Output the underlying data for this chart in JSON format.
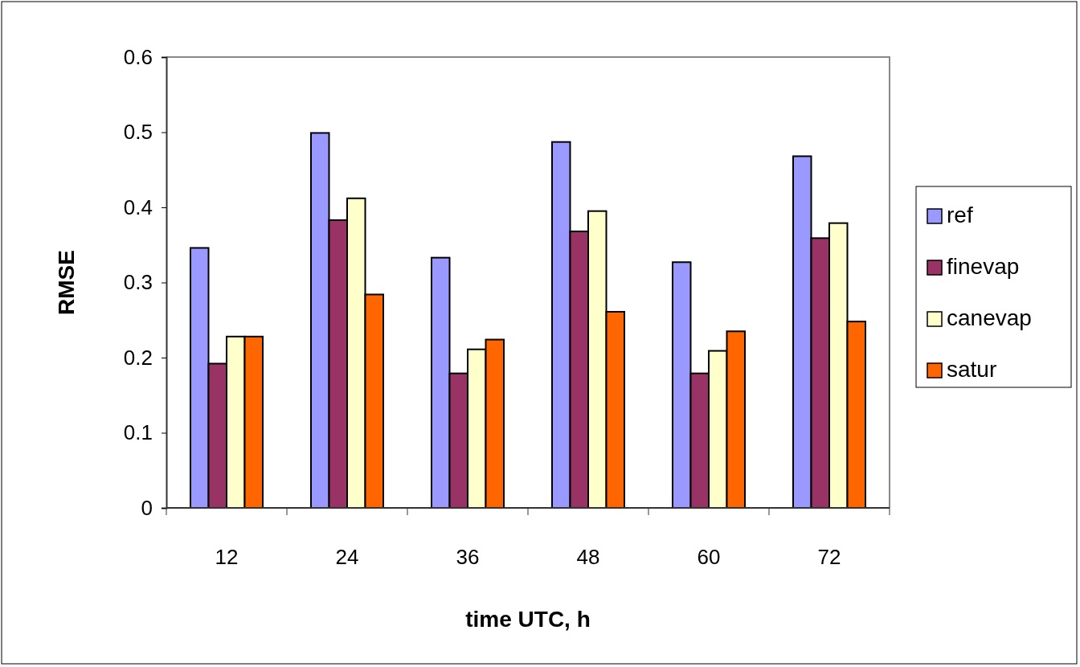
{
  "chart_data": {
    "type": "bar",
    "xlabel": "time UTC, h",
    "ylabel": "RMSE",
    "categories": [
      "12",
      "24",
      "36",
      "48",
      "60",
      "72"
    ],
    "series": [
      {
        "name": "ref",
        "color": "#9999ff",
        "values": [
          0.346,
          0.499,
          0.333,
          0.487,
          0.327,
          0.468
        ]
      },
      {
        "name": "finevap",
        "color": "#993366",
        "values": [
          0.192,
          0.383,
          0.179,
          0.368,
          0.179,
          0.359
        ]
      },
      {
        "name": "canevap",
        "color": "#ffffcc",
        "values": [
          0.228,
          0.412,
          0.211,
          0.395,
          0.209,
          0.379
        ]
      },
      {
        "name": "satur",
        "color": "#ff6600",
        "values": [
          0.228,
          0.284,
          0.224,
          0.261,
          0.235,
          0.248
        ]
      }
    ],
    "ylim": [
      0,
      0.6
    ],
    "yticks": [
      0,
      0.1,
      0.2,
      0.3,
      0.4,
      0.5,
      0.6
    ],
    "grid": false,
    "legend": "right"
  }
}
